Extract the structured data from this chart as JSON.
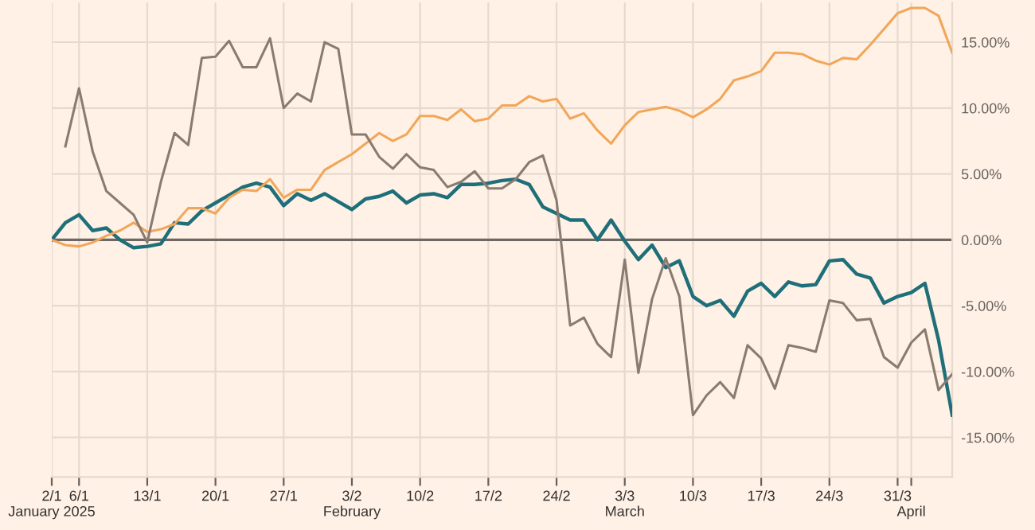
{
  "chart_data": {
    "type": "line",
    "categories": [
      "2/1\nJanuary 2025",
      null,
      "6/1",
      null,
      null,
      null,
      null,
      "13/1",
      null,
      null,
      null,
      null,
      "20/1",
      null,
      null,
      null,
      null,
      "27/1",
      null,
      null,
      null,
      null,
      "3/2\nFebruary",
      null,
      null,
      null,
      null,
      "10/2",
      null,
      null,
      null,
      null,
      "17/2",
      null,
      null,
      null,
      null,
      "24/2",
      null,
      null,
      null,
      null,
      "3/3\nMarch",
      null,
      null,
      null,
      null,
      "10/3",
      null,
      null,
      null,
      null,
      "17/3",
      null,
      null,
      null,
      null,
      "24/3",
      null,
      null,
      null,
      null,
      "31/3",
      "\nApril",
      null,
      null,
      null
    ],
    "series": [
      {
        "color": "#1f6f7a",
        "values": [
          0.0,
          1.3,
          1.9,
          0.7,
          0.9,
          0.0,
          -0.6,
          -0.5,
          -0.3,
          1.3,
          1.2,
          2.2,
          2.8,
          3.4,
          4.0,
          4.3,
          4.0,
          2.6,
          3.5,
          3.0,
          3.5,
          2.9,
          2.3,
          3.1,
          3.3,
          3.7,
          2.8,
          3.4,
          3.5,
          3.2,
          4.2,
          4.2,
          4.3,
          4.5,
          4.6,
          4.2,
          2.5,
          2.0,
          1.5,
          1.5,
          0.0,
          1.5,
          -0.1,
          -1.5,
          -0.4,
          -2.1,
          -1.6,
          -4.3,
          -5.0,
          -4.6,
          -5.8,
          -3.9,
          -3.3,
          -4.3,
          -3.2,
          -3.5,
          -3.4,
          -1.6,
          -1.5,
          -2.6,
          -2.9,
          -4.8,
          -4.3,
          -4.0,
          -3.3,
          -7.6,
          -13.3
        ]
      },
      {
        "color": "#f2a65a",
        "values": [
          0.0,
          -0.4,
          -0.5,
          -0.2,
          0.3,
          0.7,
          1.3,
          0.6,
          0.8,
          1.2,
          2.4,
          2.4,
          2.0,
          3.2,
          3.8,
          3.7,
          4.6,
          3.2,
          3.8,
          3.8,
          5.3,
          5.9,
          6.5,
          7.3,
          8.1,
          7.5,
          8.0,
          9.4,
          9.4,
          9.1,
          9.9,
          9.0,
          9.2,
          10.2,
          10.2,
          10.9,
          10.5,
          10.7,
          9.2,
          9.6,
          8.3,
          7.3,
          8.7,
          9.7,
          9.9,
          10.1,
          9.8,
          9.3,
          9.9,
          10.7,
          12.1,
          12.4,
          12.8,
          14.2,
          14.2,
          14.1,
          13.6,
          13.3,
          13.8,
          13.7,
          14.8,
          16.0,
          17.2,
          17.6,
          17.6,
          17.0,
          14.2
        ]
      },
      {
        "color": "#8a7b70",
        "values": [
          null,
          7.1,
          11.5,
          6.7,
          3.7,
          2.8,
          1.9,
          -0.2,
          4.4,
          8.1,
          7.2,
          13.8,
          13.9,
          15.1,
          13.1,
          13.1,
          15.3,
          10.0,
          11.1,
          10.5,
          15.0,
          14.5,
          8.0,
          8.0,
          6.3,
          5.4,
          6.5,
          5.5,
          5.3,
          4.0,
          4.4,
          5.2,
          3.9,
          3.9,
          4.6,
          5.9,
          6.4,
          3.0,
          -6.5,
          -5.9,
          -7.9,
          -8.9,
          -1.5,
          -10.1,
          -4.5,
          -1.4,
          -4.3,
          -13.3,
          -11.8,
          -10.8,
          -12.0,
          -8.0,
          -9.0,
          -11.3,
          -8.0,
          -8.2,
          -8.5,
          -4.6,
          -4.8,
          -6.1,
          -6.0,
          -8.9,
          -9.7,
          -7.8,
          -6.8,
          -11.4,
          -10.2
        ]
      }
    ],
    "ylim": [
      -18,
      18
    ],
    "yticks": [
      {
        "value": -15,
        "label": "-15.00%"
      },
      {
        "value": -10,
        "label": "-10.00%"
      },
      {
        "value": -5,
        "label": "-5.00%"
      },
      {
        "value": 0,
        "label": "0.00%"
      },
      {
        "value": 5,
        "label": "5.00%"
      },
      {
        "value": 10,
        "label": "10.00%"
      },
      {
        "value": 15,
        "label": "15.00%"
      }
    ],
    "ref_lines": [
      {
        "axis": "y",
        "value": 0,
        "color": "#6e6762"
      }
    ],
    "grid": true,
    "line_style": "solid",
    "marker": "none"
  }
}
